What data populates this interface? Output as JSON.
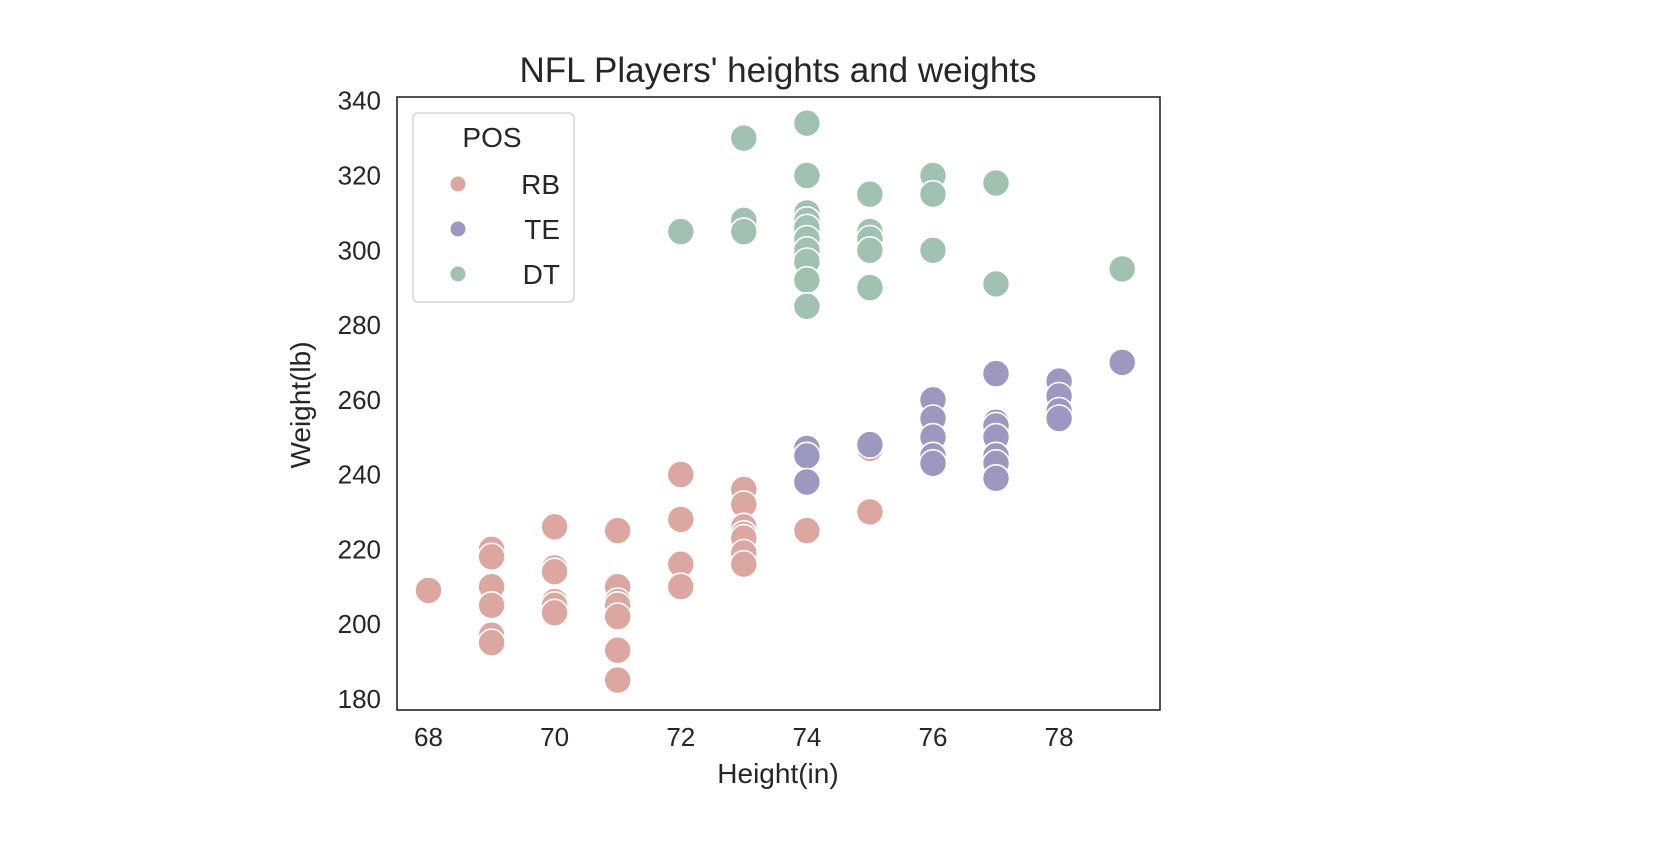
{
  "chart_data": {
    "type": "scatter",
    "title": "NFL Players' heights and weights",
    "xlabel": "Height(in)",
    "ylabel": "Weight(lb)",
    "xlim": [
      67.5,
      79.6
    ],
    "ylim": [
      177,
      341
    ],
    "xticks": [
      68,
      70,
      72,
      74,
      76,
      78
    ],
    "yticks": [
      180,
      200,
      220,
      240,
      260,
      280,
      300,
      320,
      340
    ],
    "grid": false,
    "legend": {
      "title": "POS",
      "placement": "top-left",
      "entries": [
        "RB",
        "TE",
        "DT"
      ]
    },
    "series": [
      {
        "name": "RB",
        "color": "#dca6a1",
        "points": [
          [
            68,
            209
          ],
          [
            69,
            220
          ],
          [
            69,
            218
          ],
          [
            69,
            210
          ],
          [
            69,
            205
          ],
          [
            69,
            197
          ],
          [
            69,
            195
          ],
          [
            70,
            226
          ],
          [
            70,
            215
          ],
          [
            70,
            214
          ],
          [
            70,
            206
          ],
          [
            70,
            205
          ],
          [
            70,
            203
          ],
          [
            71,
            225
          ],
          [
            71,
            210
          ],
          [
            71,
            206
          ],
          [
            71,
            205
          ],
          [
            71,
            202
          ],
          [
            71,
            193
          ],
          [
            71,
            185
          ],
          [
            72,
            240
          ],
          [
            72,
            228
          ],
          [
            72,
            216
          ],
          [
            72,
            210
          ],
          [
            73,
            236
          ],
          [
            73,
            232
          ],
          [
            73,
            226
          ],
          [
            73,
            224
          ],
          [
            73,
            223
          ],
          [
            73,
            219
          ],
          [
            73,
            216
          ],
          [
            74,
            225
          ],
          [
            75,
            247
          ],
          [
            75,
            230
          ],
          [
            76,
            246
          ],
          [
            76,
            245
          ]
        ]
      },
      {
        "name": "TE",
        "color": "#9c98bf",
        "points": [
          [
            74,
            247
          ],
          [
            74,
            245
          ],
          [
            74,
            238
          ],
          [
            75,
            248
          ],
          [
            76,
            260
          ],
          [
            76,
            255
          ],
          [
            76,
            250
          ],
          [
            76,
            245
          ],
          [
            76,
            243
          ],
          [
            77,
            267
          ],
          [
            77,
            254
          ],
          [
            77,
            253
          ],
          [
            77,
            250
          ],
          [
            77,
            245
          ],
          [
            77,
            243
          ],
          [
            77,
            239
          ],
          [
            78,
            265
          ],
          [
            78,
            261
          ],
          [
            78,
            257
          ],
          [
            78,
            255
          ],
          [
            79,
            270
          ]
        ]
      },
      {
        "name": "DT",
        "color": "#a1c2b0",
        "points": [
          [
            72,
            305
          ],
          [
            73,
            330
          ],
          [
            73,
            308
          ],
          [
            73,
            305
          ],
          [
            74,
            334
          ],
          [
            74,
            320
          ],
          [
            74,
            310
          ],
          [
            74,
            308
          ],
          [
            74,
            306
          ],
          [
            74,
            303
          ],
          [
            74,
            300
          ],
          [
            74,
            297
          ],
          [
            74,
            292
          ],
          [
            74,
            285
          ],
          [
            75,
            315
          ],
          [
            75,
            305
          ],
          [
            75,
            303
          ],
          [
            75,
            300
          ],
          [
            75,
            290
          ],
          [
            76,
            320
          ],
          [
            76,
            315
          ],
          [
            76,
            300
          ],
          [
            77,
            318
          ],
          [
            77,
            291
          ],
          [
            79,
            295
          ]
        ]
      }
    ]
  }
}
